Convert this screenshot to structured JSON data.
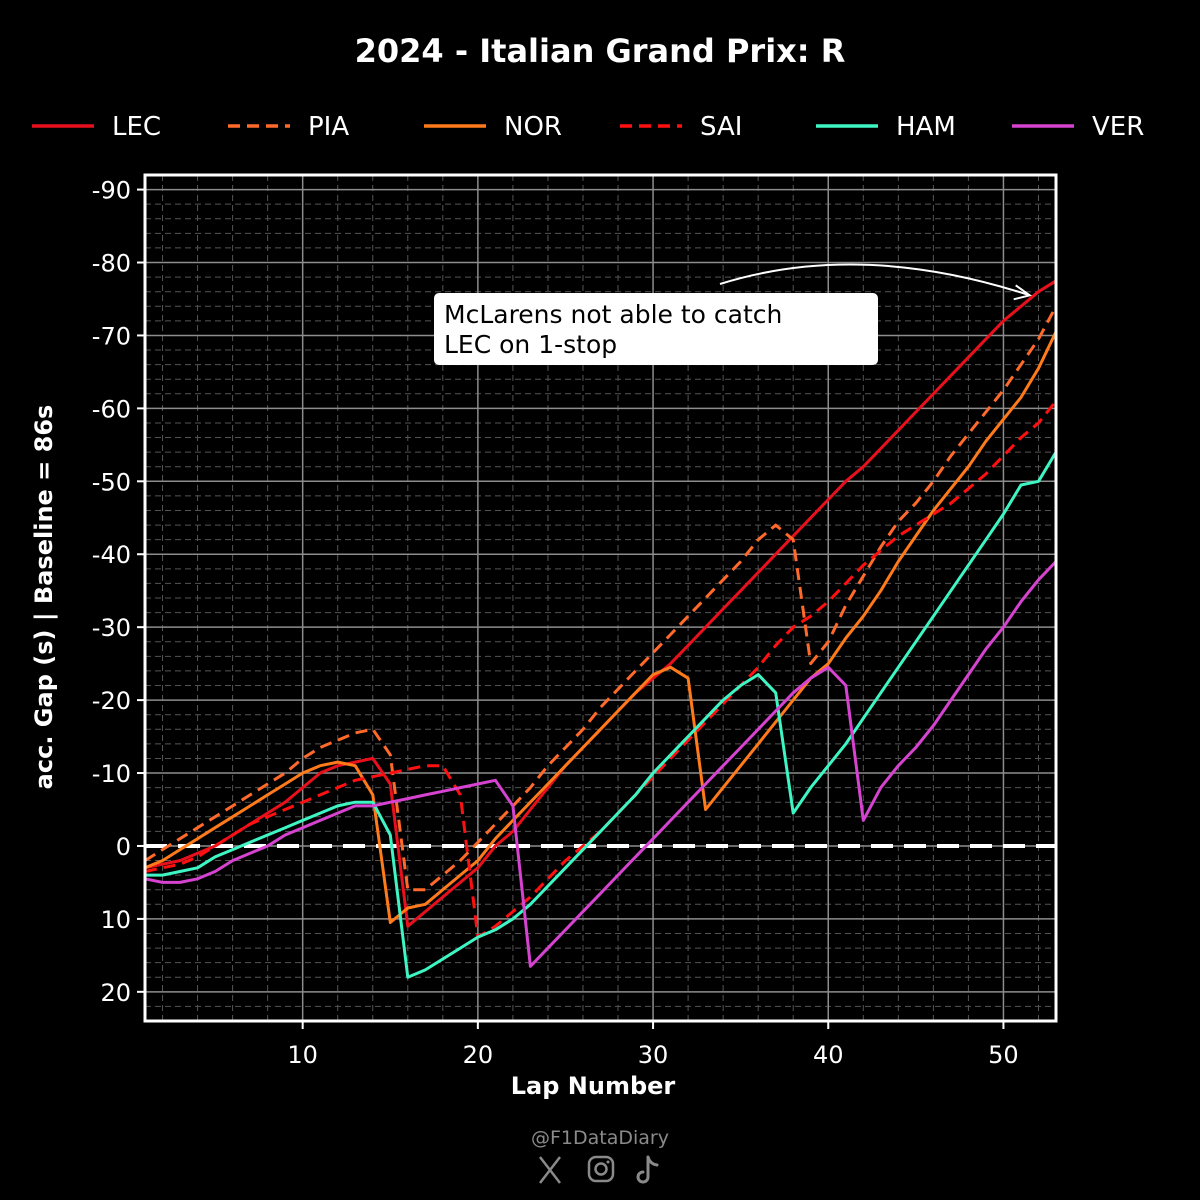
{
  "chart_data": {
    "type": "line",
    "title": "2024 - Italian Grand Prix: R",
    "xlabel": "Lap Number",
    "ylabel": "acc. Gap (s)  |  Baseline = 86s",
    "xlim": [
      1,
      53
    ],
    "ylim": [
      24,
      -92
    ],
    "y_inverted": true,
    "xticks": [
      10,
      20,
      30,
      40,
      50
    ],
    "yticks": [
      20,
      10,
      0,
      -10,
      -20,
      -30,
      -40,
      -50,
      -60,
      -70,
      -80,
      -90
    ],
    "grid": true,
    "legend_position": "top",
    "baseline": 0,
    "series": [
      {
        "name": "LEC",
        "color": "#e8101c",
        "dash": false,
        "x": [
          1,
          2,
          3,
          4,
          5,
          6,
          7,
          8,
          9,
          10,
          11,
          12,
          13,
          14,
          15,
          16,
          17,
          18,
          19,
          20,
          21,
          22,
          23,
          24,
          25,
          26,
          27,
          28,
          29,
          30,
          31,
          32,
          33,
          34,
          35,
          36,
          37,
          38,
          39,
          40,
          41,
          42,
          43,
          44,
          45,
          46,
          47,
          48,
          49,
          50,
          51,
          52,
          53
        ],
        "y": [
          3,
          2.5,
          2,
          1,
          0,
          -1.5,
          -3,
          -4.5,
          -6,
          -8,
          -10,
          -11,
          -11.5,
          -12,
          -8.5,
          11,
          9,
          7,
          5,
          3,
          0,
          -2,
          -5,
          -8,
          -11,
          -13.5,
          -16,
          -18.5,
          -21,
          -23,
          -25,
          -27.5,
          -30,
          -32.5,
          -35,
          -37.5,
          -40,
          -42.5,
          -45,
          -47.5,
          -50,
          -52,
          -54.5,
          -57,
          -59.5,
          -62,
          -64.5,
          -67,
          -69.5,
          -72,
          -74,
          -76,
          -77.5
        ]
      },
      {
        "name": "PIA",
        "color": "#ff6a2b",
        "dash": true,
        "x": [
          1,
          2,
          3,
          4,
          5,
          6,
          7,
          8,
          9,
          10,
          11,
          12,
          13,
          14,
          15,
          16,
          17,
          18,
          19,
          20,
          21,
          22,
          23,
          24,
          25,
          26,
          27,
          28,
          29,
          30,
          31,
          32,
          33,
          34,
          35,
          36,
          37,
          38,
          39,
          40,
          41,
          42,
          43,
          44,
          45,
          46,
          47,
          48,
          49,
          50,
          51,
          52,
          53
        ],
        "y": [
          2,
          0.5,
          -1,
          -2.5,
          -4,
          -5.5,
          -7,
          -8.5,
          -10,
          -12,
          -13.5,
          -14.5,
          -15.5,
          -16,
          -12.5,
          6,
          6,
          4,
          2,
          -0.5,
          -3,
          -5.5,
          -8,
          -11,
          -13.5,
          -16,
          -19,
          -21.5,
          -24,
          -26.5,
          -29,
          -31.5,
          -34,
          -36.5,
          -39,
          -42,
          -44,
          -42,
          -25,
          -28,
          -33,
          -37,
          -41,
          -44.5,
          -47,
          -50,
          -53.5,
          -56.5,
          -59.5,
          -62.5,
          -66,
          -69.5,
          -74
        ]
      },
      {
        "name": "NOR",
        "color": "#ff7a1a",
        "dash": false,
        "x": [
          1,
          2,
          3,
          4,
          5,
          6,
          7,
          8,
          9,
          10,
          11,
          12,
          13,
          14,
          15,
          16,
          17,
          18,
          19,
          20,
          21,
          22,
          23,
          24,
          25,
          26,
          27,
          28,
          29,
          30,
          31,
          32,
          33,
          34,
          35,
          36,
          37,
          38,
          39,
          40,
          41,
          42,
          43,
          44,
          45,
          46,
          47,
          48,
          49,
          50,
          51,
          52,
          53
        ],
        "y": [
          3,
          2,
          0.5,
          -1,
          -2.5,
          -4,
          -5.5,
          -7,
          -8.5,
          -10,
          -11,
          -11.5,
          -11,
          -7,
          10.5,
          8.5,
          8,
          6,
          4,
          2,
          -1,
          -3.5,
          -6,
          -8.5,
          -11,
          -13.5,
          -16,
          -18.5,
          -21,
          -23.5,
          -24.5,
          -23,
          -5,
          -8,
          -11,
          -14,
          -17,
          -20,
          -23,
          -25,
          -28.5,
          -31.5,
          -35,
          -39,
          -42.5,
          -46,
          -49,
          -52,
          -55.5,
          -58.5,
          -61.5,
          -65.5,
          -70.5
        ]
      },
      {
        "name": "SAI",
        "color": "#ff1010",
        "dash": true,
        "x": [
          1,
          2,
          3,
          4,
          5,
          6,
          7,
          8,
          9,
          10,
          11,
          12,
          13,
          14,
          15,
          16,
          17,
          18,
          19,
          20,
          21,
          22,
          23,
          24,
          25,
          26,
          27,
          28,
          29,
          30,
          31,
          32,
          33,
          34,
          35,
          36,
          37,
          38,
          39,
          40,
          41,
          42,
          43,
          44,
          45,
          46,
          47,
          48,
          49,
          50,
          51,
          52,
          53
        ],
        "y": [
          3.5,
          3,
          2.5,
          1.5,
          0,
          -1.5,
          -3,
          -4,
          -5,
          -6,
          -7,
          -8,
          -9,
          -9.5,
          -10,
          -10.5,
          -11,
          -11,
          -7,
          12.5,
          11,
          9,
          7,
          4.5,
          2,
          0,
          -2,
          -4.5,
          -7,
          -9.5,
          -12,
          -14.5,
          -17,
          -19.5,
          -22,
          -24.5,
          -27.5,
          -30,
          -31.5,
          -33.5,
          -36,
          -38.5,
          -40.5,
          -42.5,
          -44,
          -45.5,
          -47,
          -49,
          -51,
          -53.5,
          -56,
          -58,
          -61
        ]
      },
      {
        "name": "HAM",
        "color": "#3ef5c4",
        "dash": false,
        "x": [
          1,
          2,
          3,
          4,
          5,
          6,
          7,
          8,
          9,
          10,
          11,
          12,
          13,
          14,
          15,
          16,
          17,
          18,
          19,
          20,
          21,
          22,
          23,
          24,
          25,
          26,
          27,
          28,
          29,
          30,
          31,
          32,
          33,
          34,
          35,
          36,
          37,
          38,
          39,
          40,
          41,
          42,
          43,
          44,
          45,
          46,
          47,
          48,
          49,
          50,
          51,
          52,
          53
        ],
        "y": [
          4,
          4,
          3.5,
          3,
          1.5,
          0.5,
          -0.5,
          -1.5,
          -2.5,
          -3.5,
          -4.5,
          -5.5,
          -6,
          -6,
          -1.5,
          18,
          17,
          15.5,
          14,
          12.5,
          11.5,
          10,
          8,
          5.5,
          3,
          0.5,
          -2,
          -4.5,
          -7,
          -10,
          -12.5,
          -15,
          -17.5,
          -20,
          -22,
          -23.5,
          -21,
          -4.5,
          -8,
          -11,
          -14,
          -17.5,
          -21,
          -24.5,
          -28,
          -31.5,
          -35,
          -38.5,
          -42,
          -45.5,
          -49.5,
          -50,
          -54
        ]
      },
      {
        "name": "VER",
        "color": "#d543d0",
        "dash": false,
        "x": [
          1,
          2,
          3,
          4,
          5,
          6,
          7,
          8,
          9,
          10,
          11,
          12,
          13,
          14,
          15,
          16,
          17,
          18,
          19,
          20,
          21,
          22,
          23,
          24,
          25,
          26,
          27,
          28,
          29,
          30,
          31,
          32,
          33,
          34,
          35,
          36,
          37,
          38,
          39,
          40,
          41,
          42,
          43,
          44,
          45,
          46,
          47,
          48,
          49,
          50,
          51,
          52,
          53
        ],
        "y": [
          4.5,
          5,
          5,
          4.5,
          3.5,
          2,
          1,
          0,
          -1.5,
          -2.5,
          -3.5,
          -4.5,
          -5.5,
          -5.5,
          -6,
          -6.5,
          -7,
          -7.5,
          -8,
          -8.5,
          -9,
          -5.5,
          16.5,
          14,
          11.5,
          9,
          6.5,
          4,
          1.5,
          -1,
          -3.5,
          -6,
          -8.5,
          -11,
          -13.5,
          -16,
          -18.5,
          -21,
          -23,
          -24.5,
          -22,
          -3.5,
          -8,
          -11,
          -13.5,
          -16.5,
          -20,
          -23.5,
          -27,
          -30,
          -33.5,
          -36.5,
          -39
        ]
      }
    ],
    "annotation": {
      "text_lines": [
        "McLarens not able to catch",
        "LEC on 1-stop"
      ],
      "box_color": "#ffffff",
      "text_color": "#000000"
    }
  },
  "credit": {
    "handle": "@F1DataDiary",
    "icons": [
      "x-icon",
      "instagram-icon",
      "tiktok-icon"
    ]
  }
}
